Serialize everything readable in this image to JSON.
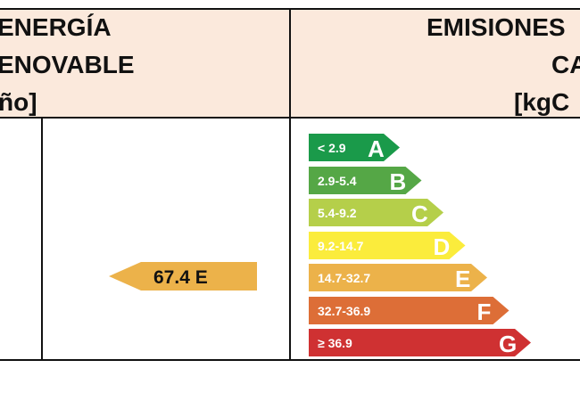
{
  "header": {
    "left_lines": [
      "ENERGÍA",
      "ENOVABLE",
      "ño]"
    ],
    "right_lines": [
      "EMISIONES",
      "CA",
      "[kgC"
    ]
  },
  "scale": [
    {
      "letter": "A",
      "range": "< 2.9",
      "color": "#1a9a4a"
    },
    {
      "letter": "B",
      "range": "2.9-5.4",
      "color": "#55a746"
    },
    {
      "letter": "C",
      "range": "5.4-9.2",
      "color": "#b5cf4a"
    },
    {
      "letter": "D",
      "range": "9.2-14.7",
      "color": "#fbec3c"
    },
    {
      "letter": "E",
      "range": "14.7-32.7",
      "color": "#ecb24a"
    },
    {
      "letter": "F",
      "range": "32.7-36.9",
      "color": "#dd6e37"
    },
    {
      "letter": "G",
      "range": "≥ 36.9",
      "color": "#cf3132"
    }
  ],
  "indicator": {
    "value": "67.4 E",
    "color": "#ecb24a"
  }
}
